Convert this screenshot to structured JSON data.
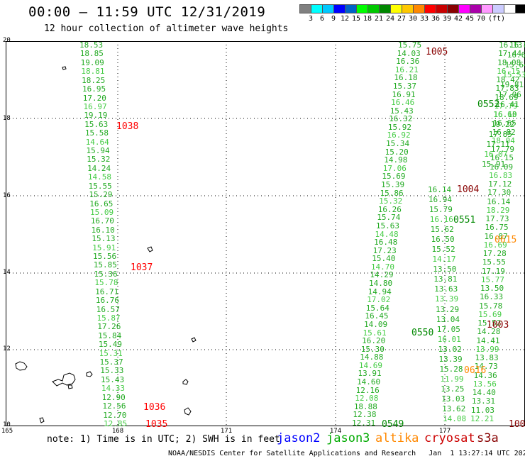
{
  "title": "00:00 – 11:59 UTC 12/31/2019",
  "subtitle": "12 hour collection of altimeter wave heights",
  "scale": {
    "colors": [
      "#808080",
      "#00ffff",
      "#00c8ff",
      "#0000ff",
      "#0064c8",
      "#00ff00",
      "#00c800",
      "#008800",
      "#ffff00",
      "#ffc800",
      "#ff8800",
      "#ff0000",
      "#c80000",
      "#880000",
      "#ff00ff",
      "#aa00aa",
      "#ff99ff",
      "#ccccff",
      "#ffffff",
      "#000000"
    ],
    "labels": [
      "3",
      "6",
      "9",
      "12",
      "15",
      "18",
      "21",
      "24",
      "27",
      "30",
      "33",
      "36",
      "39",
      "42",
      "45",
      "70",
      "(ft)"
    ]
  },
  "axes": {
    "y_ticks": [
      "20",
      "18",
      "16",
      "14",
      "12",
      "10"
    ],
    "x_ticks": [
      "165",
      "168",
      "171",
      "174",
      "177"
    ]
  },
  "tracks": {
    "left": [
      "18.53",
      "18.85",
      "19.09",
      "18.81",
      "18.25",
      "16.95",
      "17.20",
      "16.97",
      "19.19",
      "15.63",
      "15.58",
      "14.64",
      "15.94",
      "15.32",
      "14.24",
      "14.58",
      "15.55",
      "15.29",
      "16.65",
      "15.09",
      "16.70",
      "16.10",
      "15.13",
      "15.91",
      "15.56",
      "15.85",
      "15.36",
      "15.78",
      "16.71",
      "16.76",
      "16.57",
      "15.87",
      "17.26",
      "15.84",
      "15.49",
      "15.31",
      "15.37",
      "15.33",
      "15.43",
      "14.33",
      "12.90",
      "12.56",
      "12.70",
      "12.85"
    ],
    "middle": [
      "15.75",
      "14.03",
      "16.36",
      "16.21",
      "16.18",
      "15.37",
      "16.91",
      "16.46",
      "15.43",
      "16.32",
      "15.92",
      "16.92",
      "15.34",
      "15.20",
      "14.98",
      "17.06",
      "15.69",
      "15.39",
      "15.86",
      "15.32",
      "16.26",
      "15.74",
      "15.63",
      "14.48",
      "16.48",
      "17.23",
      "15.40",
      "14.70",
      "14.29",
      "14.80",
      "14.94",
      "17.02",
      "15.64",
      "16.45",
      "14.09",
      "15.61",
      "16.20",
      "15.30",
      "14.88",
      "14.69",
      "13.91",
      "14.60",
      "12.16",
      "12.08",
      "18.88",
      "12.38",
      "12.31"
    ],
    "right_a": [
      "16.14",
      "16.94",
      "15.79",
      "16.16",
      "15.62",
      "16.50",
      "15.52",
      "14.17",
      "13.50",
      "13.81",
      "13.63",
      "13.39",
      "13.29",
      "13.04",
      "17.05",
      "16.01",
      "13.02",
      "13.39",
      "15.28",
      "11.99",
      "13.25",
      "13.03",
      "13.62",
      "14.08"
    ],
    "right_b": [
      "16.13",
      "17.44",
      "18.08",
      "16.15",
      "18.42",
      "17.83",
      "18.69",
      "17.79",
      "16.10",
      "16.65",
      "16.82",
      "18.04",
      "17.79",
      "16.15",
      "16.09",
      "16.83",
      "17.12",
      "17.30",
      "16.14",
      "18.29",
      "17.73",
      "16.75",
      "16.87",
      "16.69",
      "17.28",
      "15.55",
      "17.19",
      "15.77",
      "13.50",
      "16.33",
      "15.78",
      "15.69",
      "15.52",
      "14.28",
      "14.41",
      "13.99",
      "13.83",
      "14.73",
      "14.36",
      "13.56",
      "14.40",
      "13.31",
      "11.03",
      "12.21"
    ],
    "right_c": [
      "16.8",
      "16.6",
      "15.64",
      "15.53",
      "19.81",
      "17.06",
      "16.41",
      "16.63",
      "19.22",
      "17.85",
      "17.11",
      "16.07",
      "15.91"
    ]
  },
  "time_labels": [
    {
      "text": "1005",
      "color": "#880000"
    },
    {
      "text": "1038",
      "color": "#ff0000"
    },
    {
      "text": "0552",
      "color": "#008800"
    },
    {
      "text": "1004",
      "color": "#880000"
    },
    {
      "text": "0551",
      "color": "#008800"
    },
    {
      "text": "0615",
      "color": "#ff8800"
    },
    {
      "text": "1037",
      "color": "#ff0000"
    },
    {
      "text": "1003",
      "color": "#880000"
    },
    {
      "text": "0550",
      "color": "#008800"
    },
    {
      "text": "0616",
      "color": "#ff8800"
    },
    {
      "text": "1036",
      "color": "#ff0000"
    },
    {
      "text": "1035",
      "color": "#ff0000"
    },
    {
      "text": "0549",
      "color": "#008800"
    },
    {
      "text": "100",
      "color": "#880000"
    }
  ],
  "note": "note: 1) Time is in UTC; 2) SWH is in feet",
  "legend": [
    {
      "text": "jason2",
      "color": "#0000ff"
    },
    {
      "text": "jason3",
      "color": "#00aa00"
    },
    {
      "text": "altika",
      "color": "#ff8800"
    },
    {
      "text": "cryosat",
      "color": "#cc0000"
    },
    {
      "text": "s3a",
      "color": "#880000"
    }
  ],
  "footer": "NOAA/NESDIS Center for Satellite Applications and Research   Jan  1 13:27:14 UTC 2020"
}
